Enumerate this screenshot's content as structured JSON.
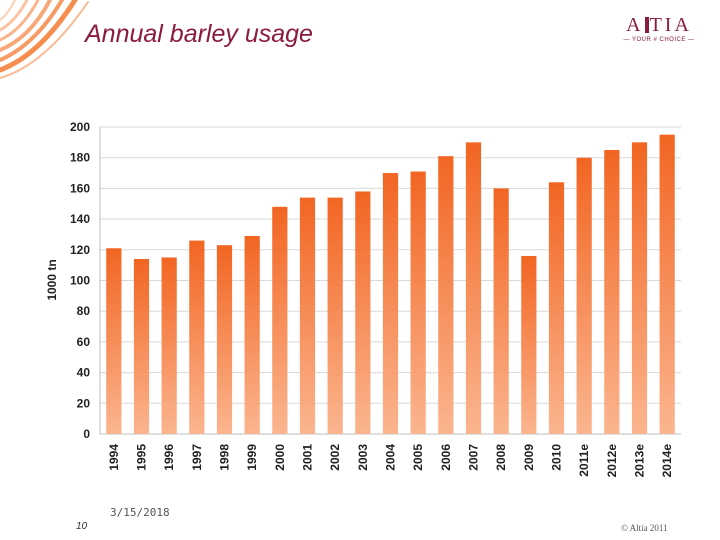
{
  "slide": {
    "title": "Annual barley usage",
    "page_number": "10",
    "date": "3/15/2018",
    "copyright": "© Altia 2011"
  },
  "logo": {
    "word": "ALTIA",
    "tagline": "— YOUR # CHOICE —",
    "color": "#8b1a3e"
  },
  "colors": {
    "title": "#8b1a3e",
    "bar_top": "#f26522",
    "bar_bottom": "#fbb58f",
    "grid": "#d9d9d9",
    "decoration": "#f47a30"
  },
  "chart_data": {
    "type": "bar",
    "title": "",
    "xlabel": "",
    "ylabel": "1000 tn",
    "ylim": [
      0,
      200
    ],
    "yticks": [
      0,
      20,
      40,
      60,
      80,
      100,
      120,
      140,
      160,
      180,
      200
    ],
    "grid": true,
    "categories": [
      "1994",
      "1995",
      "1996",
      "1997",
      "1998",
      "1999",
      "2000",
      "2001",
      "2002",
      "2003",
      "2004",
      "2005",
      "2006",
      "2007",
      "2008",
      "2009",
      "2010",
      "2011e",
      "2012e",
      "2013e",
      "2014e"
    ],
    "values": [
      121,
      114,
      115,
      126,
      123,
      129,
      148,
      154,
      154,
      158,
      170,
      171,
      181,
      190,
      160,
      116,
      164,
      180,
      185,
      190,
      195
    ]
  }
}
